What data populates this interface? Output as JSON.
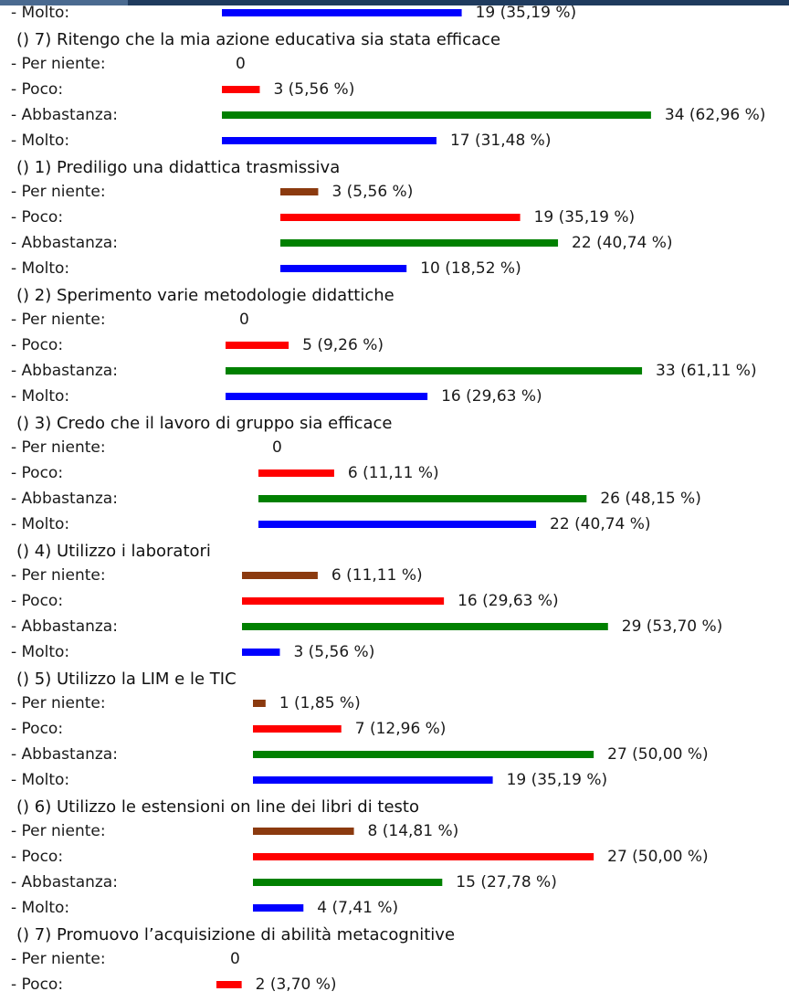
{
  "sections": [
    {
      "items": [
        {
          "label": "- Molto:",
          "value": 19,
          "value_label": "19 (35,19 %)",
          "color": "#0000ff"
        }
      ]
    },
    {
      "title": "() 7) Ritengo che la mia azione educativa sia stata efficace",
      "items": [
        {
          "label": "- Per niente:",
          "value": 0,
          "color": "#8b3a0f"
        },
        {
          "label": "- Poco:",
          "value": 3,
          "value_label": "3 (5,56 %)",
          "color": "#ff0000"
        },
        {
          "label": "- Abbastanza:",
          "value": 34,
          "value_label": "34 (62,96 %)",
          "color": "#008000"
        },
        {
          "label": "- Molto:",
          "value": 17,
          "value_label": "17 (31,48 %)",
          "color": "#0000ff"
        }
      ]
    },
    {
      "title": "() 1) Prediligo una didattica trasmissiva",
      "items": [
        {
          "label": "- Per niente:",
          "value": 3,
          "value_label": "3 (5,56 %)",
          "color": "#8b3a0f"
        },
        {
          "label": "- Poco:",
          "value": 19,
          "value_label": "19 (35,19 %)",
          "color": "#ff0000"
        },
        {
          "label": "- Abbastanza:",
          "value": 22,
          "value_label": "22 (40,74 %)",
          "color": "#008000"
        },
        {
          "label": "- Molto:",
          "value": 10,
          "value_label": "10 (18,52 %)",
          "color": "#0000ff"
        }
      ]
    },
    {
      "title": "() 2) Sperimento varie metodologie didattiche",
      "items": [
        {
          "label": "- Per niente:",
          "value": 0,
          "color": "#8b3a0f"
        },
        {
          "label": "- Poco:",
          "value": 5,
          "value_label": "5 (9,26 %)",
          "color": "#ff0000"
        },
        {
          "label": "- Abbastanza:",
          "value": 33,
          "value_label": "33 (61,11 %)",
          "color": "#008000"
        },
        {
          "label": "- Molto:",
          "value": 16,
          "value_label": "16 (29,63 %)",
          "color": "#0000ff"
        }
      ]
    },
    {
      "title": "() 3) Credo che il lavoro di gruppo sia efficace",
      "items": [
        {
          "label": "- Per niente:",
          "value": 0,
          "color": "#8b3a0f"
        },
        {
          "label": "- Poco:",
          "value": 6,
          "value_label": "6 (11,11 %)",
          "color": "#ff0000"
        },
        {
          "label": "- Abbastanza:",
          "value": 26,
          "value_label": "26 (48,15 %)",
          "color": "#008000"
        },
        {
          "label": "- Molto:",
          "value": 22,
          "value_label": "22 (40,74 %)",
          "color": "#0000ff"
        }
      ]
    },
    {
      "title": "() 4) Utilizzo i laboratori",
      "items": [
        {
          "label": "- Per niente:",
          "value": 6,
          "value_label": "6 (11,11 %)",
          "color": "#8b3a0f"
        },
        {
          "label": "- Poco:",
          "value": 16,
          "value_label": "16 (29,63 %)",
          "color": "#ff0000"
        },
        {
          "label": "- Abbastanza:",
          "value": 29,
          "value_label": "29 (53,70 %)",
          "color": "#008000"
        },
        {
          "label": "- Molto:",
          "value": 3,
          "value_label": "3 (5,56 %)",
          "color": "#0000ff"
        }
      ]
    },
    {
      "title": "() 5) Utilizzo la LIM e le TIC",
      "items": [
        {
          "label": "- Per niente:",
          "value": 1,
          "value_label": "1 (1,85 %)",
          "color": "#8b3a0f"
        },
        {
          "label": "- Poco:",
          "value": 7,
          "value_label": "7 (12,96 %)",
          "color": "#ff0000"
        },
        {
          "label": "- Abbastanza:",
          "value": 27,
          "value_label": "27 (50,00 %)",
          "color": "#008000"
        },
        {
          "label": "- Molto:",
          "value": 19,
          "value_label": "19 (35,19 %)",
          "color": "#0000ff"
        }
      ]
    },
    {
      "title": "() 6) Utilizzo le estensioni on line dei libri di testo",
      "items": [
        {
          "label": "- Per niente:",
          "value": 8,
          "value_label": "8 (14,81 %)",
          "color": "#8b3a0f"
        },
        {
          "label": "- Poco:",
          "value": 27,
          "value_label": "27 (50,00 %)",
          "color": "#ff0000"
        },
        {
          "label": "- Abbastanza:",
          "value": 15,
          "value_label": "15 (27,78 %)",
          "color": "#008000"
        },
        {
          "label": "- Molto:",
          "value": 4,
          "value_label": "4 (7,41 %)",
          "color": "#0000ff"
        }
      ]
    },
    {
      "title": "() 7) Promuovo l’acquisizione di abilità metacognitive",
      "items": [
        {
          "label": "- Per niente:",
          "value": 0,
          "color": "#8b3a0f"
        },
        {
          "label": "- Poco:",
          "value": 2,
          "value_label": "2 (3,70 %)",
          "color": "#ff0000"
        }
      ]
    }
  ]
}
